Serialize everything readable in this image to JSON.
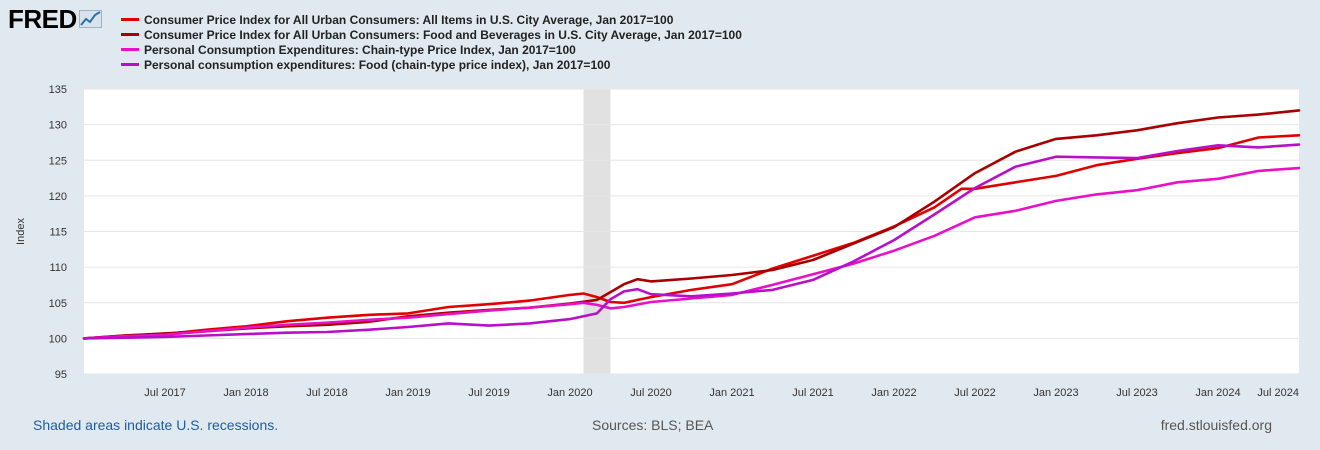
{
  "logo": {
    "text": "FRED",
    "icon": "trend-line-icon"
  },
  "colors": {
    "background": "#e1e9f0",
    "plot_background": "#ffffff",
    "recession": "#e1e1e1",
    "gridline": "#e6e6e6"
  },
  "footer": {
    "recession_note": "Shaded areas indicate U.S. recessions.",
    "sources": "Sources: BLS; BEA",
    "site": "fred.stlouisfed.org"
  },
  "chart_data": {
    "type": "line",
    "title": "",
    "xlabel": "",
    "ylabel": "Index",
    "ylim": [
      95,
      135
    ],
    "yticks": [
      95,
      100,
      105,
      110,
      115,
      120,
      125,
      130,
      135
    ],
    "xlim": [
      "2017-01",
      "2024-07"
    ],
    "xticks": [
      {
        "label": "Jul 2017",
        "value": "2017-07"
      },
      {
        "label": "Jan 2018",
        "value": "2018-01"
      },
      {
        "label": "Jul 2018",
        "value": "2018-07"
      },
      {
        "label": "Jan 2019",
        "value": "2019-01"
      },
      {
        "label": "Jul 2019",
        "value": "2019-07"
      },
      {
        "label": "Jan 2020",
        "value": "2020-01"
      },
      {
        "label": "Jul 2020",
        "value": "2020-07"
      },
      {
        "label": "Jan 2021",
        "value": "2021-01"
      },
      {
        "label": "Jul 2021",
        "value": "2021-07"
      },
      {
        "label": "Jan 2022",
        "value": "2022-01"
      },
      {
        "label": "Jul 2022",
        "value": "2022-07"
      },
      {
        "label": "Jan 2023",
        "value": "2023-01"
      },
      {
        "label": "Jul 2023",
        "value": "2023-07"
      },
      {
        "label": "Jan 2024",
        "value": "2024-01"
      },
      {
        "label": "Jul 2024",
        "value": "2024-07"
      }
    ],
    "recessions": [
      {
        "start": "2020-02",
        "end": "2020-04"
      }
    ],
    "grid": true,
    "legend_position": "top-left",
    "series": [
      {
        "name": "Consumer Price Index for All Urban Consumers: All Items in U.S. City Average, Jan 2017=100",
        "color": "#e00000",
        "points": [
          [
            "2017-01",
            100.0
          ],
          [
            "2017-04",
            100.4
          ],
          [
            "2017-07",
            100.6
          ],
          [
            "2017-10",
            101.2
          ],
          [
            "2018-01",
            101.7
          ],
          [
            "2018-04",
            102.4
          ],
          [
            "2018-07",
            102.9
          ],
          [
            "2018-10",
            103.3
          ],
          [
            "2019-01",
            103.5
          ],
          [
            "2019-04",
            104.4
          ],
          [
            "2019-07",
            104.8
          ],
          [
            "2019-10",
            105.3
          ],
          [
            "2020-01",
            106.1
          ],
          [
            "2020-02",
            106.3
          ],
          [
            "2020-03",
            105.8
          ],
          [
            "2020-04",
            105.1
          ],
          [
            "2020-05",
            105.0
          ],
          [
            "2020-07",
            105.8
          ],
          [
            "2020-10",
            106.8
          ],
          [
            "2021-01",
            107.6
          ],
          [
            "2021-04",
            109.8
          ],
          [
            "2021-07",
            111.6
          ],
          [
            "2021-10",
            113.4
          ],
          [
            "2022-01",
            115.7
          ],
          [
            "2022-04",
            118.4
          ],
          [
            "2022-06",
            121.0
          ],
          [
            "2022-07",
            121.0
          ],
          [
            "2022-10",
            121.9
          ],
          [
            "2023-01",
            122.8
          ],
          [
            "2023-04",
            124.3
          ],
          [
            "2023-07",
            125.2
          ],
          [
            "2023-10",
            126.0
          ],
          [
            "2024-01",
            126.7
          ],
          [
            "2024-04",
            128.2
          ],
          [
            "2024-07",
            128.5
          ]
        ]
      },
      {
        "name": "Consumer Price Index for All Urban Consumers: Food and Beverages in U.S. City Average, Jan 2017=100",
        "color": "#a80000",
        "points": [
          [
            "2017-01",
            100.0
          ],
          [
            "2017-04",
            100.4
          ],
          [
            "2017-07",
            100.7
          ],
          [
            "2017-10",
            101.0
          ],
          [
            "2018-01",
            101.4
          ],
          [
            "2018-04",
            101.7
          ],
          [
            "2018-07",
            101.9
          ],
          [
            "2018-10",
            102.3
          ],
          [
            "2019-01",
            103.1
          ],
          [
            "2019-04",
            103.6
          ],
          [
            "2019-07",
            104.0
          ],
          [
            "2019-10",
            104.3
          ],
          [
            "2020-01",
            104.9
          ],
          [
            "2020-03",
            105.4
          ],
          [
            "2020-04",
            106.5
          ],
          [
            "2020-05",
            107.6
          ],
          [
            "2020-06",
            108.3
          ],
          [
            "2020-07",
            108.0
          ],
          [
            "2020-10",
            108.4
          ],
          [
            "2021-01",
            108.9
          ],
          [
            "2021-04",
            109.6
          ],
          [
            "2021-07",
            111.0
          ],
          [
            "2021-10",
            113.3
          ],
          [
            "2022-01",
            115.6
          ],
          [
            "2022-04",
            119.2
          ],
          [
            "2022-07",
            123.2
          ],
          [
            "2022-10",
            126.2
          ],
          [
            "2023-01",
            128.0
          ],
          [
            "2023-04",
            128.5
          ],
          [
            "2023-07",
            129.2
          ],
          [
            "2023-10",
            130.2
          ],
          [
            "2024-01",
            131.0
          ],
          [
            "2024-04",
            131.4
          ],
          [
            "2024-07",
            132.0
          ]
        ]
      },
      {
        "name": "Personal Consumption Expenditures: Chain-type Price Index, Jan 2017=100",
        "color": "#e810c8",
        "points": [
          [
            "2017-01",
            100.0
          ],
          [
            "2017-04",
            100.3
          ],
          [
            "2017-07",
            100.5
          ],
          [
            "2017-10",
            101.0
          ],
          [
            "2018-01",
            101.5
          ],
          [
            "2018-04",
            101.9
          ],
          [
            "2018-07",
            102.2
          ],
          [
            "2018-10",
            102.6
          ],
          [
            "2019-01",
            102.9
          ],
          [
            "2019-04",
            103.4
          ],
          [
            "2019-07",
            103.9
          ],
          [
            "2019-10",
            104.3
          ],
          [
            "2020-01",
            104.8
          ],
          [
            "2020-02",
            105.0
          ],
          [
            "2020-03",
            104.7
          ],
          [
            "2020-04",
            104.2
          ],
          [
            "2020-05",
            104.4
          ],
          [
            "2020-07",
            105.1
          ],
          [
            "2020-10",
            105.6
          ],
          [
            "2021-01",
            106.1
          ],
          [
            "2021-04",
            107.5
          ],
          [
            "2021-07",
            109.0
          ],
          [
            "2021-10",
            110.5
          ],
          [
            "2022-01",
            112.3
          ],
          [
            "2022-04",
            114.4
          ],
          [
            "2022-07",
            117.0
          ],
          [
            "2022-10",
            117.9
          ],
          [
            "2023-01",
            119.3
          ],
          [
            "2023-04",
            120.2
          ],
          [
            "2023-07",
            120.8
          ],
          [
            "2023-10",
            121.9
          ],
          [
            "2024-01",
            122.4
          ],
          [
            "2024-04",
            123.5
          ],
          [
            "2024-07",
            123.9
          ]
        ]
      },
      {
        "name": "Personal consumption expenditures: Food (chain-type price index), Jan 2017=100",
        "color": "#b810c8",
        "points": [
          [
            "2017-01",
            100.0
          ],
          [
            "2017-04",
            100.1
          ],
          [
            "2017-07",
            100.2
          ],
          [
            "2017-10",
            100.4
          ],
          [
            "2018-01",
            100.6
          ],
          [
            "2018-04",
            100.8
          ],
          [
            "2018-07",
            100.9
          ],
          [
            "2018-10",
            101.2
          ],
          [
            "2019-01",
            101.6
          ],
          [
            "2019-04",
            102.1
          ],
          [
            "2019-07",
            101.8
          ],
          [
            "2019-10",
            102.1
          ],
          [
            "2020-01",
            102.7
          ],
          [
            "2020-03",
            103.5
          ],
          [
            "2020-04",
            105.5
          ],
          [
            "2020-05",
            106.6
          ],
          [
            "2020-06",
            106.9
          ],
          [
            "2020-07",
            106.2
          ],
          [
            "2020-10",
            105.9
          ],
          [
            "2021-01",
            106.3
          ],
          [
            "2021-04",
            106.8
          ],
          [
            "2021-07",
            108.2
          ],
          [
            "2021-10",
            110.8
          ],
          [
            "2022-01",
            113.8
          ],
          [
            "2022-04",
            117.4
          ],
          [
            "2022-07",
            121.1
          ],
          [
            "2022-10",
            124.1
          ],
          [
            "2023-01",
            125.5
          ],
          [
            "2023-04",
            125.4
          ],
          [
            "2023-07",
            125.3
          ],
          [
            "2023-10",
            126.3
          ],
          [
            "2024-01",
            127.1
          ],
          [
            "2024-04",
            126.8
          ],
          [
            "2024-07",
            127.2
          ]
        ]
      }
    ]
  }
}
